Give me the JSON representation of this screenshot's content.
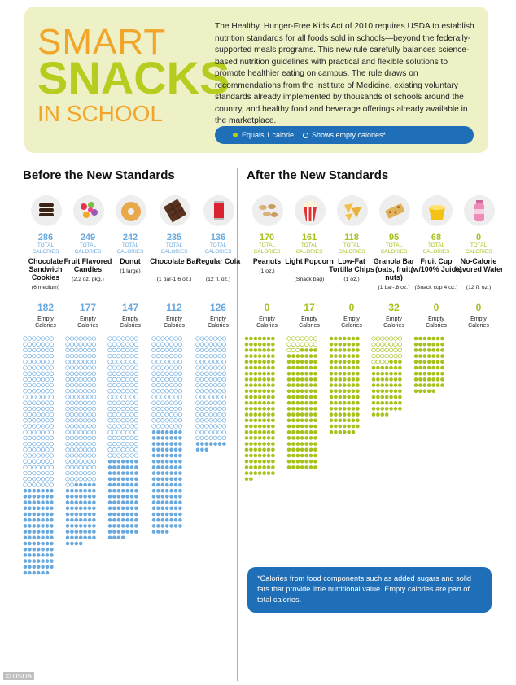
{
  "header": {
    "logo_line1": "SMART",
    "logo_line2": "SNACKS",
    "logo_line3": "IN SCHOOL",
    "intro": "The Healthy, Hunger-Free Kids Act of 2010 requires USDA to establish nutrition standards for all foods sold in schools—beyond the federally-supported meals programs. This new rule carefully balances science-based nutrition guidelines with practical and flexible solutions to promote healthier eating on campus. The rule draws on recommendations from the Institute of Medicine, existing voluntary standards already implemented by thousands of schools around the country, and healthy food and beverage offerings already available in the marketplace.",
    "legend_filled": "Equals 1 calorie",
    "legend_empty": "Shows empty calories*"
  },
  "sections": {
    "before": "Before the New Standards",
    "after": "After the New Standards"
  },
  "labels": {
    "total": "TOTAL CALORIES",
    "empty": "Empty Calories"
  },
  "colors": {
    "before": "#6aa9de",
    "after": "#a7c21c",
    "accent": "#f2a52b",
    "legend_bg": "#1e6fb7"
  },
  "chart_data": {
    "type": "dot-column",
    "series": [
      {
        "name": "Before the New Standards",
        "items": [
          {
            "food": "Chocolate Sandwich Cookies",
            "serving": "(6 medium)",
            "total_calories": 286,
            "empty_calories": 182,
            "icon": "cookies-icon"
          },
          {
            "food": "Fruit Flavored Candies",
            "serving": "(2.2 oz. pkg.)",
            "total_calories": 249,
            "empty_calories": 177,
            "icon": "candies-icon"
          },
          {
            "food": "Donut",
            "serving": "(1 large)",
            "total_calories": 242,
            "empty_calories": 147,
            "icon": "donut-icon"
          },
          {
            "food": "Chocolate Bar",
            "serving": "(1 bar-1.6 oz.)",
            "total_calories": 235,
            "empty_calories": 112,
            "icon": "chocolate-bar-icon"
          },
          {
            "food": "Regular Cola",
            "serving": "(12 fl. oz.)",
            "total_calories": 136,
            "empty_calories": 126,
            "icon": "cola-can-icon"
          }
        ]
      },
      {
        "name": "After the New Standards",
        "items": [
          {
            "food": "Peanuts",
            "serving": "(1 oz.)",
            "total_calories": 170,
            "empty_calories": 0,
            "icon": "peanuts-icon"
          },
          {
            "food": "Light Popcorn",
            "serving": "(Snack bag)",
            "total_calories": 161,
            "empty_calories": 17,
            "icon": "popcorn-icon"
          },
          {
            "food": "Low-Fat Tortilla Chips",
            "serving": "(1 oz.)",
            "total_calories": 118,
            "empty_calories": 0,
            "icon": "tortilla-chips-icon"
          },
          {
            "food": "Granola Bar (oats, fruit, nuts)",
            "serving": "(1 bar-.8 oz.)",
            "total_calories": 95,
            "empty_calories": 32,
            "icon": "granola-bar-icon"
          },
          {
            "food": "Fruit Cup (w/100% Juice)",
            "serving": "(Snack cup 4 oz.)",
            "total_calories": 68,
            "empty_calories": 0,
            "icon": "fruit-cup-icon"
          },
          {
            "food": "No-Calorie flavored Water",
            "serving": "(12 fl. oz.)",
            "total_calories": 0,
            "empty_calories": 0,
            "icon": "water-bottle-icon"
          }
        ]
      }
    ]
  },
  "footnote": "*Calories from food components such as added sugars and solid fats that provide little nutritional value. Empty calories are part of total calories.",
  "credit": "© USDA"
}
